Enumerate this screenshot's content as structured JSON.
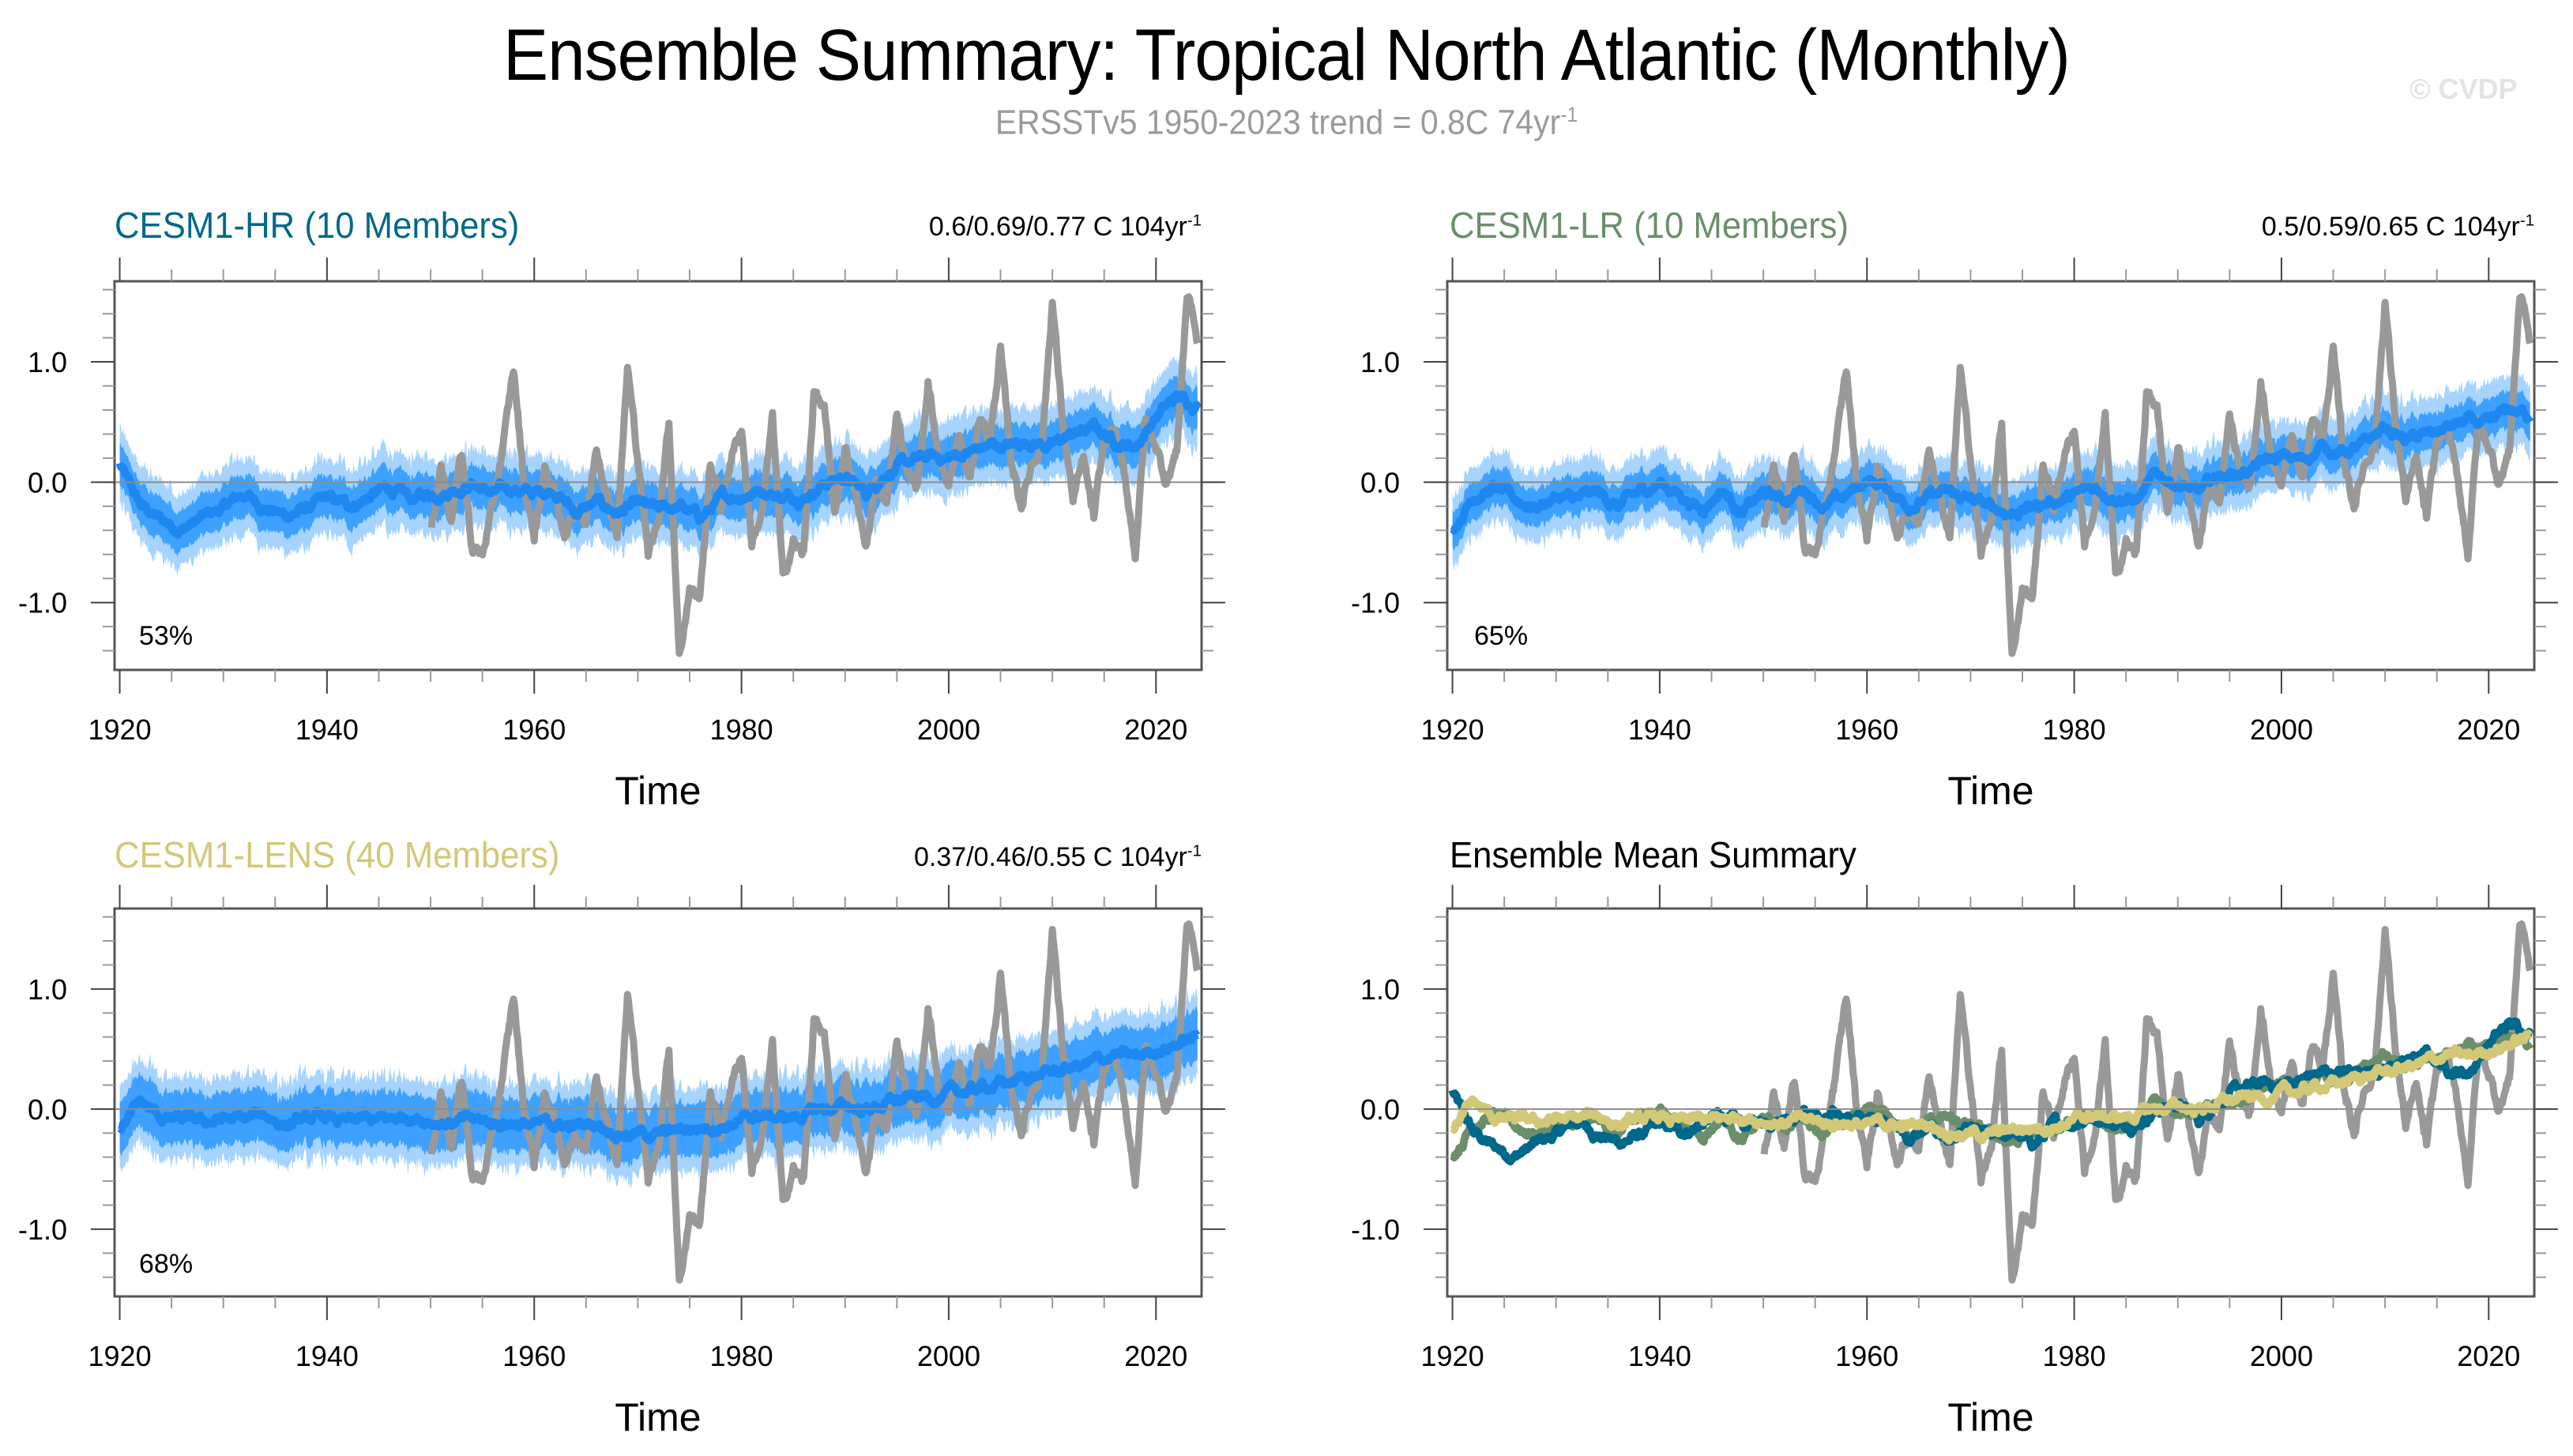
{
  "header": {
    "title": "Ensemble Summary: Tropical North Atlantic (Monthly)",
    "subtitle_main": "ERSSTv5 1950-2023 trend = 0.8C 74yr",
    "subtitle_sup": "-1",
    "watermark": "© CVDP"
  },
  "colors": {
    "observed": "#999999",
    "envelope_minmax": "#a6d4ff",
    "envelope_pct": "#3ea0ff",
    "ensemble_mean": "#1e88f0",
    "hr": "#00688b",
    "lr": "#6b8e6b",
    "lens": "#d2c878",
    "frame": "#555555",
    "zero_line": "#8c8c8c"
  },
  "panels": [
    {
      "id": "cesm1-hr",
      "title": "CESM1-HR (10 Members)",
      "title_color": "#00688b",
      "trend": "0.6/0.69/0.77 C 104yr",
      "trend_sup": "-1",
      "percent": "53%",
      "xlabel": "Time"
    },
    {
      "id": "cesm1-lr",
      "title": "CESM1-LR (10 Members)",
      "title_color": "#6b8e6b",
      "trend": "0.5/0.59/0.65 C 104yr",
      "trend_sup": "-1",
      "percent": "65%",
      "xlabel": "Time"
    },
    {
      "id": "cesm1-lens",
      "title": "CESM1-LENS (40 Members)",
      "title_color": "#d2c878",
      "trend": "0.37/0.46/0.55 C 104yr",
      "trend_sup": "-1",
      "percent": "68%",
      "xlabel": "Time"
    },
    {
      "id": "ensemble-mean-summary",
      "title": "Ensemble Mean Summary",
      "title_color": "#000000",
      "trend": "",
      "trend_sup": "",
      "percent": "",
      "xlabel": "Time"
    }
  ],
  "chart_data": {
    "type": "line",
    "title": "Ensemble Summary: Tropical North Atlantic (Monthly)",
    "subtitle": "ERSSTv5 1950-2023 trend = 0.8C 74yr-1",
    "xlabel": "Time",
    "ylabel": "",
    "xlim": [
      1919.5,
      2024.4
    ],
    "ylim": [
      -1.56,
      1.67
    ],
    "x_ticks": [
      1920,
      1940,
      1960,
      1980,
      2000,
      2020
    ],
    "x_minor_step": 5,
    "y_ticks": [
      -1.0,
      0.0,
      1.0
    ],
    "y_tick_labels": [
      "-1.0",
      "0.0",
      "1.0"
    ],
    "y_minor_step": 0.2,
    "grid": false,
    "reference_line": 0.0,
    "observed": {
      "name": "ERSSTv5",
      "x": [
        1950,
        1951,
        1952,
        1953,
        1954,
        1955,
        1956,
        1957,
        1958,
        1959,
        1960,
        1961,
        1962,
        1963,
        1964,
        1965,
        1966,
        1967,
        1968,
        1969,
        1970,
        1971,
        1972,
        1973,
        1974,
        1975,
        1976,
        1977,
        1978,
        1979,
        1980,
        1981,
        1982,
        1983,
        1984,
        1985,
        1986,
        1987,
        1988,
        1989,
        1990,
        1991,
        1992,
        1993,
        1994,
        1995,
        1996,
        1997,
        1998,
        1999,
        2000,
        2001,
        2002,
        2003,
        2004,
        2005,
        2006,
        2007,
        2008,
        2009,
        2010,
        2011,
        2012,
        2013,
        2014,
        2015,
        2016,
        2017,
        2018,
        2019,
        2020,
        2021,
        2022,
        2023,
        2023.5,
        2024
      ],
      "y": [
        -0.45,
        0.15,
        -0.3,
        0.25,
        -0.55,
        -0.6,
        -0.2,
        0.3,
        0.95,
        0.0,
        -0.45,
        0.1,
        -0.1,
        -0.45,
        -0.2,
        -0.35,
        0.3,
        -0.1,
        -0.45,
        0.95,
        0.2,
        -0.6,
        -0.3,
        0.5,
        -1.45,
        -0.9,
        -0.95,
        0.15,
        -0.2,
        0.2,
        0.45,
        -0.5,
        -0.25,
        0.55,
        -0.8,
        -0.5,
        -0.6,
        0.75,
        0.6,
        -0.3,
        0.3,
        -0.1,
        -0.55,
        0.0,
        -0.15,
        0.55,
        0.1,
        -0.05,
        0.85,
        0.2,
        -0.05,
        0.4,
        0.0,
        0.55,
        0.35,
        1.1,
        0.2,
        -0.2,
        0.15,
        0.3,
        1.5,
        0.5,
        -0.15,
        0.2,
        -0.3,
        0.35,
        0.45,
        0.05,
        -0.6,
        0.5,
        0.3,
        0.0,
        0.25,
        1.55,
        1.45,
        1.15
      ]
    },
    "series": [
      {
        "name": "CESM1-HR ensemble mean",
        "x": [
          1920,
          1921,
          1922,
          1924,
          1926,
          1928,
          1930,
          1932,
          1934,
          1936,
          1938,
          1940,
          1942,
          1944,
          1946,
          1948,
          1950,
          1952,
          1954,
          1956,
          1958,
          1960,
          1962,
          1964,
          1966,
          1968,
          1970,
          1972,
          1974,
          1976,
          1978,
          1980,
          1982,
          1984,
          1986,
          1988,
          1990,
          1992,
          1994,
          1996,
          1998,
          2000,
          2002,
          2004,
          2006,
          2008,
          2010,
          2012,
          2014,
          2016,
          2018,
          2020,
          2022,
          2024
        ],
        "y": [
          0.15,
          -0.05,
          -0.2,
          -0.32,
          -0.38,
          -0.3,
          -0.22,
          -0.1,
          -0.2,
          -0.28,
          -0.22,
          -0.15,
          -0.2,
          -0.12,
          -0.05,
          -0.15,
          -0.1,
          -0.05,
          0.0,
          -0.1,
          -0.05,
          -0.1,
          -0.05,
          -0.25,
          -0.18,
          -0.25,
          -0.2,
          -0.25,
          -0.2,
          -0.3,
          -0.15,
          -0.1,
          -0.05,
          -0.12,
          -0.1,
          0.0,
          0.05,
          -0.1,
          0.1,
          0.15,
          0.2,
          0.2,
          0.25,
          0.3,
          0.3,
          0.35,
          0.3,
          0.4,
          0.45,
          0.35,
          0.3,
          0.55,
          0.7,
          0.65
        ]
      },
      {
        "name": "CESM1-LR ensemble mean",
        "x": [
          1920,
          1921,
          1922,
          1924,
          1926,
          1928,
          1930,
          1932,
          1934,
          1936,
          1938,
          1940,
          1942,
          1944,
          1946,
          1948,
          1950,
          1952,
          1954,
          1956,
          1958,
          1960,
          1962,
          1964,
          1966,
          1968,
          1970,
          1972,
          1974,
          1976,
          1978,
          1980,
          1982,
          1984,
          1986,
          1988,
          1990,
          1992,
          1994,
          1996,
          1998,
          2000,
          2002,
          2004,
          2006,
          2008,
          2010,
          2012,
          2014,
          2016,
          2018,
          2020,
          2022,
          2024
        ],
        "y": [
          -0.4,
          -0.25,
          -0.1,
          -0.05,
          -0.15,
          -0.2,
          -0.12,
          -0.15,
          -0.1,
          -0.2,
          -0.1,
          0.0,
          -0.1,
          -0.22,
          -0.05,
          -0.25,
          -0.1,
          -0.15,
          -0.05,
          -0.2,
          -0.12,
          0.02,
          -0.05,
          -0.18,
          -0.12,
          -0.1,
          -0.15,
          -0.22,
          -0.25,
          -0.2,
          -0.15,
          -0.12,
          -0.05,
          -0.1,
          -0.15,
          0.05,
          0.0,
          -0.1,
          0.05,
          0.08,
          0.15,
          0.2,
          0.18,
          0.3,
          0.25,
          0.3,
          0.45,
          0.35,
          0.38,
          0.45,
          0.5,
          0.45,
          0.6,
          0.55
        ]
      },
      {
        "name": "CESM1-LENS ensemble mean",
        "x": [
          1920,
          1921,
          1922,
          1924,
          1926,
          1928,
          1930,
          1932,
          1934,
          1936,
          1938,
          1940,
          1942,
          1944,
          1946,
          1948,
          1950,
          1952,
          1954,
          1956,
          1958,
          1960,
          1962,
          1964,
          1966,
          1968,
          1970,
          1972,
          1974,
          1976,
          1978,
          1980,
          1982,
          1984,
          1986,
          1988,
          1990,
          1992,
          1994,
          1996,
          1998,
          2000,
          2002,
          2004,
          2006,
          2008,
          2010,
          2012,
          2014,
          2016,
          2018,
          2020,
          2022,
          2024
        ],
        "y": [
          -0.15,
          -0.05,
          0.05,
          -0.08,
          -0.1,
          -0.12,
          -0.08,
          -0.1,
          -0.05,
          -0.12,
          -0.1,
          -0.08,
          -0.12,
          -0.1,
          -0.1,
          -0.05,
          -0.08,
          -0.1,
          -0.1,
          -0.12,
          -0.1,
          -0.15,
          -0.12,
          -0.15,
          -0.12,
          -0.18,
          -0.2,
          -0.22,
          -0.18,
          -0.15,
          -0.12,
          -0.1,
          -0.05,
          -0.08,
          -0.05,
          0.0,
          0.02,
          0.0,
          0.05,
          0.08,
          0.1,
          0.12,
          0.15,
          0.2,
          0.22,
          0.28,
          0.3,
          0.35,
          0.38,
          0.45,
          0.42,
          0.5,
          0.55,
          0.6
        ]
      }
    ],
    "legend": "none",
    "panel_series": {
      "cesm1-hr": [
        "observed",
        "CESM1-HR ensemble mean",
        "envelope 10-90%",
        "envelope min-max"
      ],
      "cesm1-lr": [
        "observed",
        "CESM1-LR ensemble mean",
        "envelope 10-90%",
        "envelope min-max"
      ],
      "cesm1-lens": [
        "observed",
        "CESM1-LENS ensemble mean",
        "envelope 10-90%",
        "envelope min-max"
      ],
      "ensemble-mean-summary": [
        "observed",
        "CESM1-HR ensemble mean",
        "CESM1-LR ensemble mean",
        "CESM1-LENS ensemble mean"
      ]
    },
    "annotations": [
      "53%",
      "65%",
      "68%"
    ]
  }
}
